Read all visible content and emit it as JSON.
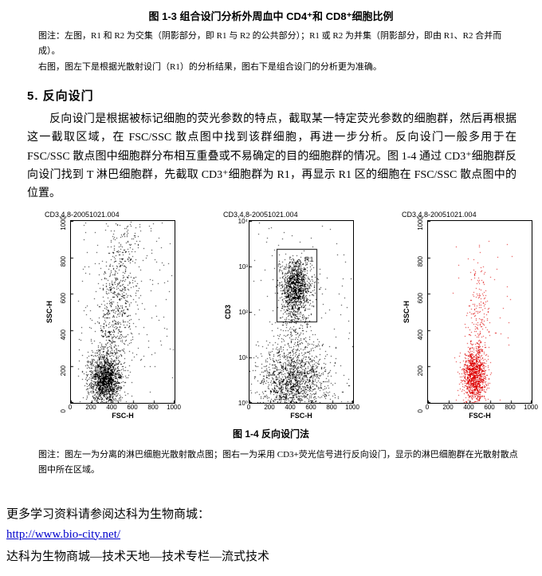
{
  "document": {
    "fig13_caption": "图 1-3  组合设门分析外周血中 CD4⁺和 CD8⁺细胞比例",
    "note1": "图注：左图，R1 和 R2 为交集（阴影部分，即 R1 与 R2 的公共部分）；R1 或 R2 为并集（阴影部分，即由 R1、R2 合并而成）。",
    "note2": "右图，图左下是根据光散射设门（R1）的分析结果，图右下是组合设门的分析更为准确。",
    "section_heading": "5. 反向设门",
    "paragraph": "反向设门是根据被标记细胞的荧光参数的特点，截取某一特定荧光参数的细胞群，然后再根据这一截取区域，在 FSC/SSC 散点图中找到该群细胞，再进一步分析。反向设门一般多用于在 FSC/SSC 散点图中细胞群分布相互重叠或不易确定的目的细胞群的情况。图 1-4 通过 CD3⁺细胞群反向设门找到 T 淋巴细胞群，先截取 CD3⁺细胞群为 R1，再显示 R1 区的细胞在 FSC/SSC 散点图中的位置。",
    "fig14_caption": "图 1-4  反向设门法",
    "note3": "图注：图左一为分离的淋巴细胞光散射散点图；图右一为采用 CD3+荧光信号进行反向设门，显示的淋巴细胞群在光散射散点图中所在区域。",
    "footer_text": "更多学习资料请参阅达科为生物商城：",
    "footer_link": "http://www.bio-city.net/",
    "footer_line2": "达科为生物商城—技术天地—技术专栏—流式技术"
  },
  "chart_data": [
    {
      "type": "scatter",
      "title": "CD3,4,8-20051021.004",
      "xlabel": "FSC-H",
      "ylabel": "SSC-H",
      "xscale": "linear",
      "yscale": "linear",
      "xlim": [
        0,
        1000
      ],
      "ylim": [
        0,
        1000
      ],
      "xticks": [
        "0",
        "200",
        "400",
        "600",
        "800",
        "1000"
      ],
      "yticks": [
        "0",
        "200",
        "400",
        "600",
        "800",
        "1000"
      ],
      "point_color": "#000000",
      "clusters": [
        {
          "name": "lymphocyte-cluster",
          "shape": "gauss",
          "n": 1500,
          "cx": 330,
          "cy": 130,
          "sx": 75,
          "sy": 65
        },
        {
          "name": "granulocyte-monocyte-smear",
          "shape": "gauss",
          "n": 850,
          "cx": 430,
          "cy": 500,
          "sx": 115,
          "sy": 265,
          "corr": 0.5
        },
        {
          "name": "background-events",
          "shape": "uniform",
          "n": 170,
          "x0": 60,
          "x1": 1000,
          "y0": 0,
          "y1": 1000
        }
      ]
    },
    {
      "type": "scatter",
      "title": "CD3,4,8-20051021.004",
      "xlabel": "FSC-H",
      "ylabel": "CD3",
      "xscale": "linear",
      "yscale": "log",
      "xlim": [
        0,
        1000
      ],
      "ylim_decades": [
        0,
        4
      ],
      "xticks": [
        "0",
        "200",
        "400",
        "600",
        "800",
        "1000"
      ],
      "yticks": [
        "10⁰",
        "10¹",
        "10²",
        "10³",
        "10⁴"
      ],
      "point_color": "#000000",
      "gate": {
        "label": "R1",
        "x": [
          265,
          650
        ],
        "y_decades": [
          1.78,
          3.38
        ],
        "label_pos": [
          530,
          3.1
        ]
      },
      "clusters": [
        {
          "name": "cd3-positive-lymphocytes",
          "shape": "gauss",
          "n": 1200,
          "cx": 445,
          "cy": 2.55,
          "sx": 72,
          "sy": 0.3
        },
        {
          "name": "cd3-negative-events",
          "shape": "gauss",
          "n": 1500,
          "cx": 420,
          "cy": 0.45,
          "sx": 170,
          "sy": 0.42
        },
        {
          "name": "intermediate-bridge",
          "shape": "gauss",
          "n": 280,
          "cx": 455,
          "cy": 1.45,
          "sx": 95,
          "sy": 0.75
        },
        {
          "name": "background-events",
          "shape": "uniform",
          "n": 120,
          "x0": 40,
          "x1": 1000,
          "y0": 0,
          "y1": 4
        }
      ]
    },
    {
      "type": "scatter",
      "title": "CD3,4,8-20051021.004",
      "xlabel": "FSC-H",
      "ylabel": "SSC-H",
      "xscale": "linear",
      "yscale": "linear",
      "xlim": [
        0,
        1000
      ],
      "ylim": [
        0,
        1000
      ],
      "xticks": [
        "0",
        "200",
        "400",
        "600",
        "800",
        "1000"
      ],
      "yticks": [
        "0",
        "200",
        "400",
        "600",
        "800",
        "1000"
      ],
      "point_color": "#dd0000",
      "clusters": [
        {
          "name": "gated-lymphocytes-red",
          "shape": "gauss",
          "n": 1100,
          "cx": 445,
          "cy": 150,
          "sx": 55,
          "sy": 75
        },
        {
          "name": "upward-trail-red",
          "shape": "gauss",
          "n": 240,
          "cx": 485,
          "cy": 420,
          "sx": 55,
          "sy": 185
        },
        {
          "name": "background-events",
          "shape": "uniform",
          "n": 45,
          "x0": 220,
          "x1": 820,
          "y0": 0,
          "y1": 900
        }
      ]
    }
  ]
}
